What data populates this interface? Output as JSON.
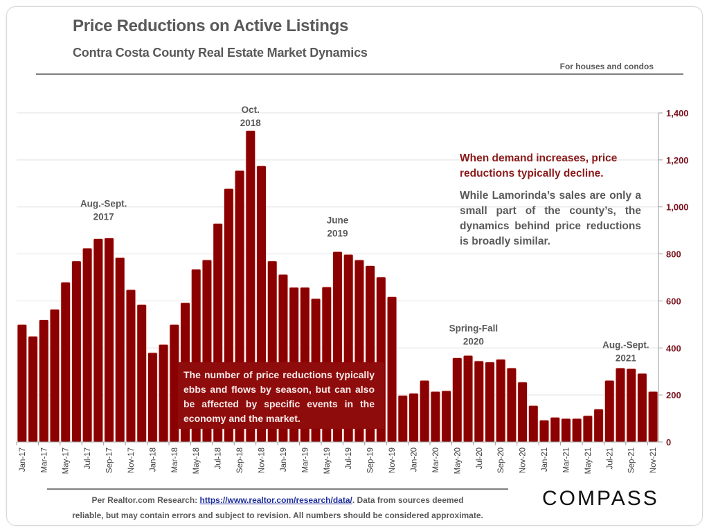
{
  "header": {
    "title": "Price Reductions on Active Listings",
    "subtitle": "Contra Costa County Real Estate Market Dynamics",
    "scope_note": "For houses and condos"
  },
  "callouts": {
    "right_heading": "When demand increases, price reductions typically decline.",
    "right_body": "While Lamorinda’s sales are only a small part of the county’s, the dynamics behind price reductions is broadly similar.",
    "box_text": "The number of price reductions typically ebbs and flows by season, but can also be affected by specific events in the economy and the market."
  },
  "footer": {
    "prefix": "Per Realtor.com Research:",
    "link_text": "https://www.realtor.com/research/data/",
    "suffix_line1": ". Data from sources deemed",
    "line2": "reliable, but may contain errors and subject to revision. All numbers should be considered approximate.",
    "logo": "COMPASS"
  },
  "colors": {
    "bar": "#8b0000",
    "bar_edge": "#ffd9d2",
    "axis_label": "#7b1420",
    "annotation": "#595959"
  },
  "chart_data": {
    "type": "bar",
    "title": "Price Reductions on Active Listings",
    "xlabel": "",
    "ylabel": "",
    "y_axis_side": "right",
    "ylim": [
      0,
      1400
    ],
    "yticks": [
      0,
      200,
      400,
      600,
      800,
      1000,
      1200,
      1400
    ],
    "ytick_labels": [
      "0",
      "200",
      "400",
      "600",
      "800",
      "1,000",
      "1,200",
      "1,400"
    ],
    "grid": true,
    "categories": [
      "Jan-17",
      "Feb-17",
      "Mar-17",
      "Apr-17",
      "May-17",
      "Jun-17",
      "Jul-17",
      "Aug-17",
      "Sep-17",
      "Oct-17",
      "Nov-17",
      "Dec-17",
      "Jan-18",
      "Feb-18",
      "Mar-18",
      "Apr-18",
      "May-18",
      "Jun-18",
      "Jul-18",
      "Aug-18",
      "Sep-18",
      "Oct-18",
      "Nov-18",
      "Dec-18",
      "Jan-19",
      "Feb-19",
      "Mar-19",
      "Apr-19",
      "May-19",
      "Jun-19",
      "Jul-19",
      "Aug-19",
      "Sep-19",
      "Oct-19",
      "Nov-19",
      "Dec-19",
      "Jan-20",
      "Feb-20",
      "Mar-20",
      "Apr-20",
      "May-20",
      "Jun-20",
      "Jul-20",
      "Aug-20",
      "Sep-20",
      "Oct-20",
      "Nov-20",
      "Dec-20",
      "Jan-21",
      "Feb-21",
      "Mar-21",
      "Apr-21",
      "May-21",
      "Jun-21",
      "Jul-21",
      "Aug-21",
      "Sep-21",
      "Oct-21",
      "Nov-21"
    ],
    "xtick_labels_shown": [
      "Jan-17",
      "Mar-17",
      "May-17",
      "Jul-17",
      "Sep-17",
      "Nov-17",
      "Jan-18",
      "Mar-18",
      "May-18",
      "Jul-18",
      "Sep-18",
      "Nov-18",
      "Jan-19",
      "Mar-19",
      "May-19",
      "Jul-19",
      "Sep-19",
      "Nov-19",
      "Jan-20",
      "Mar-20",
      "May-20",
      "Jul-20",
      "Sep-20",
      "Nov-20",
      "Jan-21",
      "Mar-21",
      "May-21",
      "Jul-21",
      "Sep-21",
      "Nov-21"
    ],
    "values": [
      500,
      450,
      520,
      565,
      680,
      770,
      825,
      865,
      868,
      785,
      648,
      585,
      380,
      415,
      500,
      593,
      735,
      775,
      930,
      1078,
      1155,
      1325,
      1175,
      770,
      713,
      658,
      658,
      610,
      660,
      810,
      798,
      775,
      750,
      702,
      618,
      198,
      207,
      262,
      215,
      218,
      358,
      368,
      345,
      340,
      352,
      315,
      255,
      155,
      93,
      105,
      100,
      100,
      112,
      140,
      262,
      315,
      312,
      292,
      215
    ],
    "annotations": [
      {
        "lines": [
          "Aug.-Sept.",
          "2017"
        ],
        "at": [
          "Aug-17",
          "Sep-17"
        ],
        "value": 1000
      },
      {
        "lines": [
          "Oct.",
          "2018"
        ],
        "at": [
          "Oct-18"
        ],
        "value": 1400
      },
      {
        "lines": [
          "June",
          "2019"
        ],
        "at": [
          "Jun-19"
        ],
        "value": 930
      },
      {
        "lines": [
          "Spring-Fall",
          "2020"
        ],
        "at": [
          "Jun-20",
          "Jul-20"
        ],
        "value": 470
      },
      {
        "lines": [
          "Aug.-Sept.",
          "2021"
        ],
        "at": [
          "Aug-21",
          "Sep-21"
        ],
        "value": 400
      }
    ]
  }
}
